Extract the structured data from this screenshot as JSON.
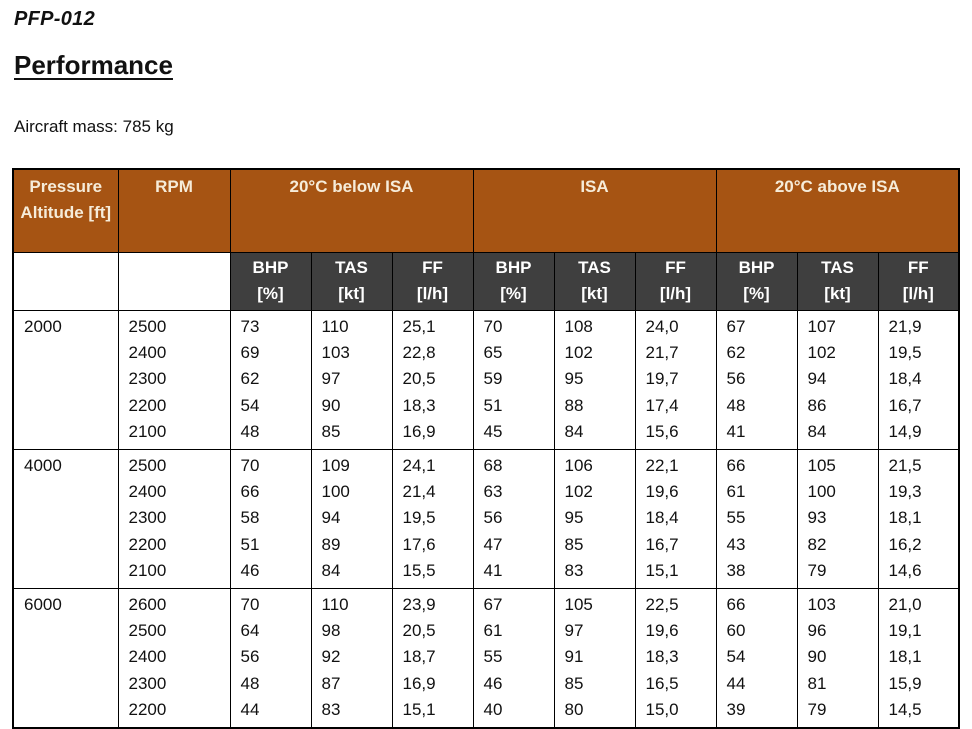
{
  "header": {
    "doc_code": "PFP-012",
    "title": "Performance",
    "aircraft_mass": "Aircraft mass: 785 kg"
  },
  "table": {
    "altitude_header": "Pressure Altitude [ft]",
    "rpm_header": "RPM",
    "groups": [
      "20°C below ISA",
      "ISA",
      "20°C above ISA"
    ],
    "sub_headers": [
      "BHP\n[%]",
      "TAS\n[kt]",
      "FF\n[l/h]"
    ],
    "blocks": [
      {
        "altitude": "2000",
        "rpm": [
          "2500",
          "2400",
          "2300",
          "2200",
          "2100"
        ],
        "below_isa": {
          "bhp": [
            "73",
            "69",
            "62",
            "54",
            "48"
          ],
          "tas": [
            "110",
            "103",
            "97",
            "90",
            "85"
          ],
          "ff": [
            "25,1",
            "22,8",
            "20,5",
            "18,3",
            "16,9"
          ]
        },
        "isa": {
          "bhp": [
            "70",
            "65",
            "59",
            "51",
            "45"
          ],
          "tas": [
            "108",
            "102",
            "95",
            "88",
            "84"
          ],
          "ff": [
            "24,0",
            "21,7",
            "19,7",
            "17,4",
            "15,6"
          ]
        },
        "above_isa": {
          "bhp": [
            "67",
            "62",
            "56",
            "48",
            "41"
          ],
          "tas": [
            "107",
            "102",
            "94",
            "86",
            "84"
          ],
          "ff": [
            "21,9",
            "19,5",
            "18,4",
            "16,7",
            "14,9"
          ]
        }
      },
      {
        "altitude": "4000",
        "rpm": [
          "2500",
          "2400",
          "2300",
          "2200",
          "2100"
        ],
        "below_isa": {
          "bhp": [
            "70",
            "66",
            "58",
            "51",
            "46"
          ],
          "tas": [
            "109",
            "100",
            "94",
            "89",
            "84"
          ],
          "ff": [
            "24,1",
            "21,4",
            "19,5",
            "17,6",
            "15,5"
          ]
        },
        "isa": {
          "bhp": [
            "68",
            "63",
            "56",
            "47",
            "41"
          ],
          "tas": [
            "106",
            "102",
            "95",
            "85",
            "83"
          ],
          "ff": [
            "22,1",
            "19,6",
            "18,4",
            "16,7",
            "15,1"
          ]
        },
        "above_isa": {
          "bhp": [
            "66",
            "61",
            "55",
            "43",
            "38"
          ],
          "tas": [
            "105",
            "100",
            "93",
            "82",
            "79"
          ],
          "ff": [
            "21,5",
            "19,3",
            "18,1",
            "16,2",
            "14,6"
          ]
        }
      },
      {
        "altitude": "6000",
        "rpm": [
          "2600",
          "2500",
          "2400",
          "2300",
          "2200"
        ],
        "below_isa": {
          "bhp": [
            "70",
            "64",
            "56",
            "48",
            "44"
          ],
          "tas": [
            "110",
            "98",
            "92",
            "87",
            "83"
          ],
          "ff": [
            "23,9",
            "20,5",
            "18,7",
            "16,9",
            "15,1"
          ]
        },
        "isa": {
          "bhp": [
            "67",
            "61",
            "55",
            "46",
            "40"
          ],
          "tas": [
            "105",
            "97",
            "91",
            "85",
            "80"
          ],
          "ff": [
            "22,5",
            "19,6",
            "18,3",
            "16,5",
            "15,0"
          ]
        },
        "above_isa": {
          "bhp": [
            "66",
            "60",
            "54",
            "44",
            "39"
          ],
          "tas": [
            "103",
            "96",
            "90",
            "81",
            "79"
          ],
          "ff": [
            "21,0",
            "19,1",
            "18,1",
            "15,9",
            "14,5"
          ]
        }
      }
    ],
    "colors": {
      "group_header_bg": "#a65413",
      "group_header_text": "#f6ecd9",
      "sub_header_bg": "#3f3f3f",
      "sub_header_text": "#ffffff",
      "border": "#000000"
    }
  }
}
